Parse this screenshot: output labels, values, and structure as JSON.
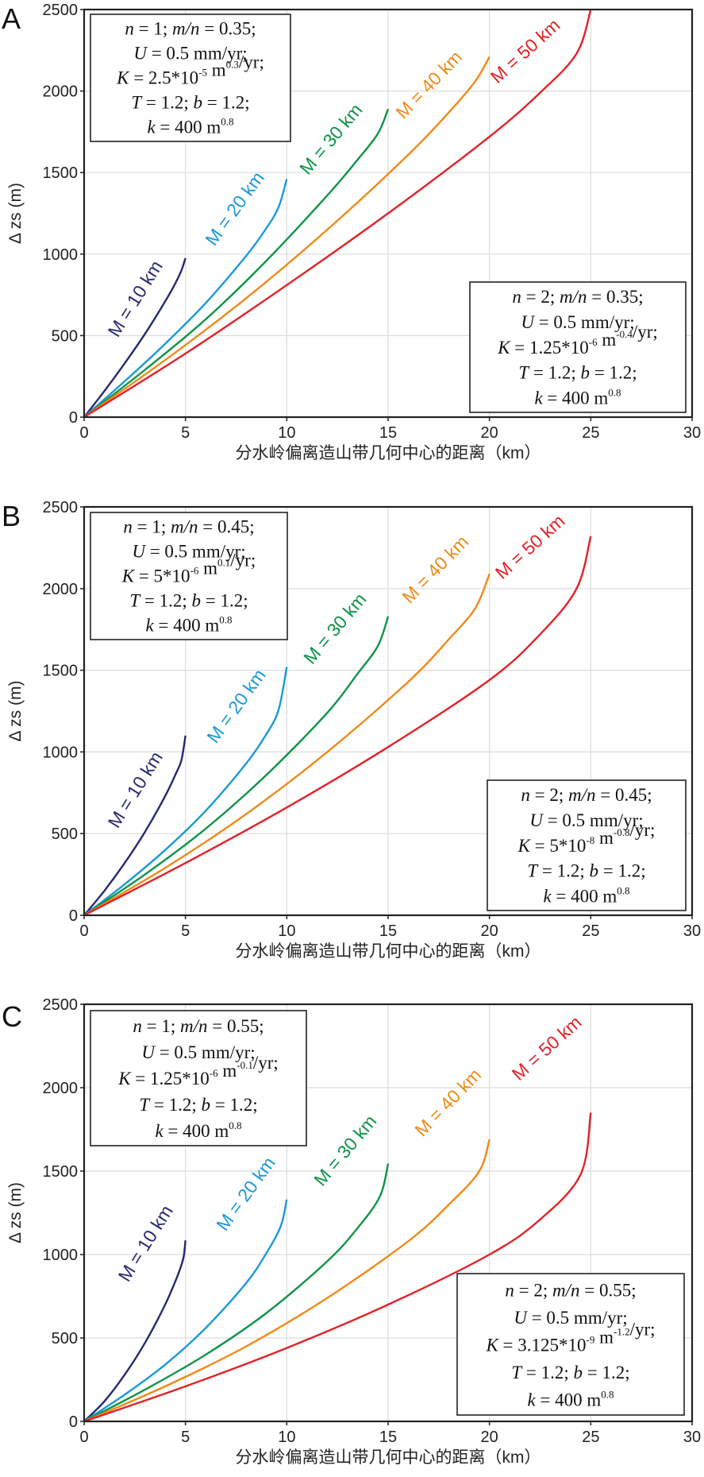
{
  "chart_data": [
    {
      "type": "line",
      "panel_label": "A",
      "ylabel": "Δ zs (m)",
      "xlabel": "分水岭偏离造山带几何中心的距离（km）",
      "xlim": [
        0,
        30
      ],
      "ylim": [
        0,
        2500
      ],
      "x_ticks": [
        0,
        5,
        10,
        15,
        20,
        25,
        30
      ],
      "y_ticks": [
        0,
        500,
        1000,
        1500,
        2000,
        2500
      ],
      "grid": true,
      "params_box_1": {
        "line1": "n = 1; m/n = 0.35;",
        "line2": "U = 0.5 mm/yr;",
        "line3": "K = 2.5*10-5 m0.3/yr;",
        "line4": "T = 1.2; b = 1.2;",
        "line5": "k = 400 m0.8"
      },
      "params_box_2": {
        "line1": "n = 2; m/n = 0.35;",
        "line2": "U = 0.5 mm/yr;",
        "line3": "K = 1.25*10-6 m-0.4/yr;",
        "line4": "T = 1.2; b = 1.2;",
        "line5": "k = 400 m0.8"
      },
      "series": [
        {
          "name": "M = 10 km",
          "color": "#27296f",
          "x": [
            0,
            1,
            2,
            3,
            4,
            4.5,
            4.8,
            5
          ],
          "y": [
            0,
            160,
            330,
            510,
            710,
            820,
            900,
            975
          ]
        },
        {
          "name": "M = 20 km",
          "color": "#1a9ad6",
          "x": [
            0,
            2,
            4,
            6,
            8,
            9,
            9.6,
            10
          ],
          "y": [
            0,
            220,
            450,
            700,
            990,
            1160,
            1290,
            1460
          ]
        },
        {
          "name": "M = 30 km",
          "color": "#0f9448",
          "x": [
            0,
            3,
            6,
            9,
            12,
            13.5,
            14.5,
            15
          ],
          "y": [
            0,
            290,
            600,
            960,
            1360,
            1580,
            1740,
            1890
          ]
        },
        {
          "name": "M = 40 km",
          "color": "#ef8a17",
          "x": [
            0,
            4,
            8,
            12,
            16,
            18,
            19.3,
            20
          ],
          "y": [
            0,
            350,
            730,
            1150,
            1610,
            1870,
            2060,
            2210
          ]
        },
        {
          "name": "M = 50 km",
          "color": "#e32127",
          "x": [
            0,
            5,
            10,
            15,
            20,
            22.5,
            24.3,
            25
          ],
          "y": [
            0,
            390,
            810,
            1250,
            1720,
            1990,
            2230,
            2500
          ]
        }
      ]
    },
    {
      "type": "line",
      "panel_label": "B",
      "ylabel": "Δ zs (m)",
      "xlabel": "分水岭偏离造山带几何中心的距离（km）",
      "xlim": [
        0,
        30
      ],
      "ylim": [
        0,
        2500
      ],
      "x_ticks": [
        0,
        5,
        10,
        15,
        20,
        25,
        30
      ],
      "y_ticks": [
        0,
        500,
        1000,
        1500,
        2000,
        2500
      ],
      "grid": true,
      "params_box_1": {
        "line1": "n = 1; m/n = 0.45;",
        "line2": "U = 0.5 mm/yr;",
        "line3": "K = 5*10-6 m0.1/yr;",
        "line4": "T = 1.2; b = 1.2;",
        "line5": "k = 400 m0.8"
      },
      "params_box_2": {
        "line1": "n = 2; m/n = 0.45;",
        "line2": "U = 0.5 mm/yr;",
        "line3": "K = 5*10-8 m-0.8/yr;",
        "line4": "T = 1.2; b = 1.2;",
        "line5": "k = 400 m0.8"
      },
      "series": [
        {
          "name": "M = 10 km",
          "color": "#27296f",
          "x": [
            0,
            1,
            2,
            3,
            4,
            4.5,
            4.8,
            5
          ],
          "y": [
            0,
            150,
            320,
            510,
            730,
            860,
            950,
            1100
          ]
        },
        {
          "name": "M = 20 km",
          "color": "#1a9ad6",
          "x": [
            0,
            2,
            4,
            6,
            8,
            9,
            9.6,
            10
          ],
          "y": [
            0,
            190,
            400,
            640,
            930,
            1110,
            1260,
            1520
          ]
        },
        {
          "name": "M = 30 km",
          "color": "#0f9448",
          "x": [
            0,
            3,
            6,
            9,
            12,
            13.5,
            14.5,
            15
          ],
          "y": [
            0,
            250,
            530,
            860,
            1240,
            1480,
            1650,
            1830
          ]
        },
        {
          "name": "M = 40 km",
          "color": "#ef8a17",
          "x": [
            0,
            4,
            8,
            12,
            16,
            18,
            19.3,
            20
          ],
          "y": [
            0,
            290,
            620,
            1000,
            1430,
            1690,
            1880,
            2090
          ]
        },
        {
          "name": "M = 50 km",
          "color": "#e32127",
          "x": [
            0,
            5,
            10,
            15,
            20,
            22.5,
            24.3,
            25
          ],
          "y": [
            0,
            320,
            660,
            1030,
            1440,
            1720,
            2000,
            2320
          ]
        }
      ]
    },
    {
      "type": "line",
      "panel_label": "C",
      "ylabel": "Δ zs (m)",
      "xlabel": "分水岭偏离造山带几何中心的距离（km）",
      "xlim": [
        0,
        30
      ],
      "ylim": [
        0,
        2500
      ],
      "x_ticks": [
        0,
        5,
        10,
        15,
        20,
        25,
        30
      ],
      "y_ticks": [
        0,
        500,
        1000,
        1500,
        2000,
        2500
      ],
      "grid": true,
      "params_box_1": {
        "line1": "n = 1; m/n = 0.55;",
        "line2": "U = 0.5 mm/yr;",
        "line3": "K = 1.25*10-6 m-0.1/yr;",
        "line4": "T = 1.2; b = 1.2;",
        "line5": "k = 400 m0.8"
      },
      "params_box_2": {
        "line1": "n = 2; m/n = 0.55;",
        "line2": "U = 0.5 mm/yr;",
        "line3": "K = 3.125*10-9 m-1.2/yr;",
        "line4": "T = 1.2; b = 1.2;",
        "line5": "k = 400 m0.8"
      },
      "series": [
        {
          "name": "M = 10 km",
          "color": "#27296f",
          "x": [
            0,
            1,
            2,
            3,
            4,
            4.6,
            4.9,
            5
          ],
          "y": [
            0,
            120,
            280,
            470,
            700,
            870,
            980,
            1085
          ]
        },
        {
          "name": "M = 20 km",
          "color": "#1a9ad6",
          "x": [
            0,
            2,
            4,
            6,
            8,
            9,
            9.7,
            10
          ],
          "y": [
            0,
            160,
            340,
            560,
            830,
            1010,
            1170,
            1330
          ]
        },
        {
          "name": "M = 30 km",
          "color": "#0f9448",
          "x": [
            0,
            3,
            6,
            9,
            12,
            13.5,
            14.6,
            15
          ],
          "y": [
            0,
            190,
            400,
            650,
            960,
            1160,
            1350,
            1545
          ]
        },
        {
          "name": "M = 40 km",
          "color": "#ef8a17",
          "x": [
            0,
            4,
            8,
            12,
            16,
            18,
            19.5,
            20
          ],
          "y": [
            0,
            210,
            450,
            740,
            1080,
            1300,
            1500,
            1690
          ]
        },
        {
          "name": "M = 50 km",
          "color": "#e32127",
          "x": [
            0,
            5,
            10,
            15,
            20,
            22.5,
            24.5,
            25
          ],
          "y": [
            0,
            210,
            440,
            700,
            1000,
            1210,
            1480,
            1850
          ]
        }
      ]
    }
  ]
}
